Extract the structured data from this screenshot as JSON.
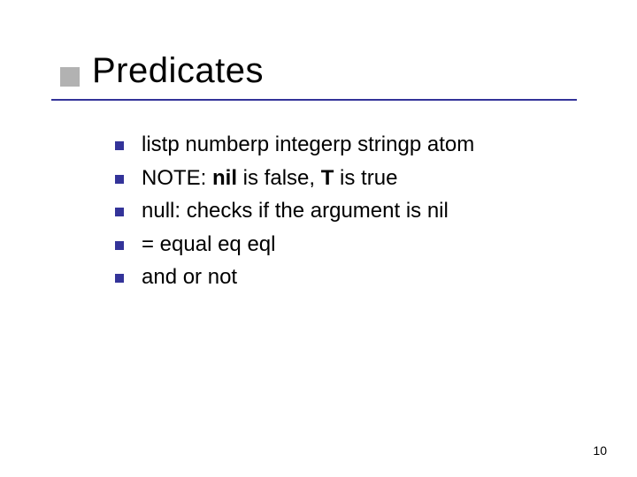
{
  "slide": {
    "title": "Predicates",
    "accent_square_color": "#b2b2b2",
    "underline_color": "#333399",
    "bullet_color": "#333399",
    "title_fontsize": 40,
    "body_fontsize": 24,
    "page_number": "10",
    "bullets": [
      {
        "segments": [
          {
            "text": "listp  numberp  integerp  stringp  atom",
            "bold": false
          }
        ]
      },
      {
        "segments": [
          {
            "text": "NOTE:  ",
            "bold": false
          },
          {
            "text": "nil",
            "bold": true
          },
          {
            "text": " is false, ",
            "bold": false
          },
          {
            "text": "T",
            "bold": true
          },
          {
            "text": " is true",
            "bold": false
          }
        ]
      },
      {
        "segments": [
          {
            "text": "null:  checks if the argument is nil",
            "bold": false
          }
        ]
      },
      {
        "segments": [
          {
            "text": "= equal  eq  eql",
            "bold": false
          }
        ]
      },
      {
        "segments": [
          {
            "text": "and  or  not",
            "bold": false
          }
        ]
      }
    ]
  }
}
